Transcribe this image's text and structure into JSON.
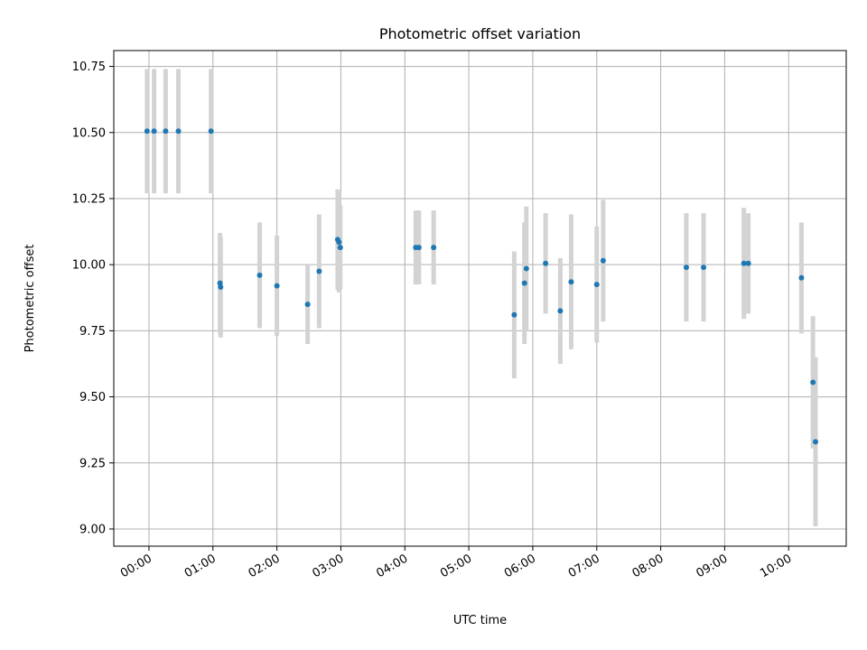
{
  "chart_data": {
    "type": "scatter",
    "title": "Photometric offset variation",
    "xlabel": "UTC time",
    "ylabel": "Photometric offset",
    "x_unit": "hours UTC",
    "xlim": [
      -0.55,
      10.9
    ],
    "ylim": [
      8.935,
      10.81
    ],
    "x_ticks": [
      0,
      1,
      2,
      3,
      4,
      5,
      6,
      7,
      8,
      9,
      10
    ],
    "x_tick_labels": [
      "00:00",
      "01:00",
      "02:00",
      "03:00",
      "04:00",
      "05:00",
      "06:00",
      "07:00",
      "08:00",
      "09:00",
      "10:00"
    ],
    "y_ticks": [
      9.0,
      9.25,
      9.5,
      9.75,
      10.0,
      10.25,
      10.5,
      10.75
    ],
    "y_tick_labels": [
      "9.00",
      "9.25",
      "9.50",
      "9.75",
      "10.00",
      "10.25",
      "10.50",
      "10.75"
    ],
    "grid": true,
    "legend": "none",
    "marker_color": "#1f77b4",
    "errorbar_color": "#d3d3d3",
    "points": [
      {
        "x": -0.03,
        "y": 10.505,
        "yerr": 0.235
      },
      {
        "x": 0.08,
        "y": 10.505,
        "yerr": 0.235
      },
      {
        "x": 0.26,
        "y": 10.505,
        "yerr": 0.235
      },
      {
        "x": 0.46,
        "y": 10.505,
        "yerr": 0.235
      },
      {
        "x": 0.97,
        "y": 10.505,
        "yerr": 0.235
      },
      {
        "x": 1.11,
        "y": 9.93,
        "yerr": 0.19
      },
      {
        "x": 1.12,
        "y": 9.915,
        "yerr": 0.19
      },
      {
        "x": 1.73,
        "y": 9.96,
        "yerr": 0.2
      },
      {
        "x": 2.0,
        "y": 9.92,
        "yerr": 0.19
      },
      {
        "x": 2.48,
        "y": 9.85,
        "yerr": 0.15
      },
      {
        "x": 2.66,
        "y": 9.975,
        "yerr": 0.215
      },
      {
        "x": 2.95,
        "y": 10.095,
        "yerr": 0.19
      },
      {
        "x": 2.97,
        "y": 10.085,
        "yerr": 0.19
      },
      {
        "x": 2.99,
        "y": 10.065,
        "yerr": 0.16
      },
      {
        "x": 4.17,
        "y": 10.065,
        "yerr": 0.14
      },
      {
        "x": 4.22,
        "y": 10.065,
        "yerr": 0.14
      },
      {
        "x": 4.45,
        "y": 10.065,
        "yerr": 0.14
      },
      {
        "x": 5.71,
        "y": 9.81,
        "yerr": 0.24
      },
      {
        "x": 5.87,
        "y": 9.93,
        "yerr": 0.23
      },
      {
        "x": 5.9,
        "y": 9.985,
        "yerr": 0.235
      },
      {
        "x": 6.2,
        "y": 10.005,
        "yerr": 0.19
      },
      {
        "x": 6.43,
        "y": 9.825,
        "yerr": 0.2
      },
      {
        "x": 6.6,
        "y": 9.935,
        "yerr": 0.255
      },
      {
        "x": 7.0,
        "y": 9.925,
        "yerr": 0.22
      },
      {
        "x": 7.1,
        "y": 10.015,
        "yerr": 0.23
      },
      {
        "x": 8.4,
        "y": 9.99,
        "yerr": 0.205
      },
      {
        "x": 8.67,
        "y": 9.99,
        "yerr": 0.205
      },
      {
        "x": 9.3,
        "y": 10.005,
        "yerr": 0.21
      },
      {
        "x": 9.37,
        "y": 10.005,
        "yerr": 0.19
      },
      {
        "x": 10.2,
        "y": 9.95,
        "yerr": 0.21
      },
      {
        "x": 10.38,
        "y": 9.555,
        "yerr": 0.25
      },
      {
        "x": 10.42,
        "y": 9.33,
        "yerr": 0.32
      }
    ]
  }
}
